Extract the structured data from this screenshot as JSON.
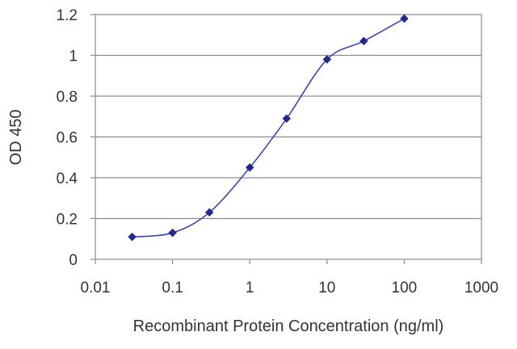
{
  "chart_data": {
    "type": "line",
    "title": "",
    "xlabel": "Recombinant Protein Concentration (ng/ml)",
    "ylabel": "OD 450",
    "x_scale": "log",
    "xlim": [
      0.01,
      1000
    ],
    "ylim": [
      0,
      1.2
    ],
    "x_ticks": [
      "0.01",
      "0.1",
      "1",
      "10",
      "100",
      "1000"
    ],
    "y_ticks": [
      "0",
      "0.2",
      "0.4",
      "0.6",
      "0.8",
      "1",
      "1.2"
    ],
    "grid": "horizontal",
    "legend": "none",
    "series": [
      {
        "x": [
          0.03,
          0.1,
          0.3,
          1,
          3,
          10,
          30,
          100
        ],
        "y": [
          0.11,
          0.13,
          0.23,
          0.45,
          0.69,
          0.98,
          1.07,
          1.18
        ],
        "color": "#1f2a8c"
      }
    ]
  }
}
